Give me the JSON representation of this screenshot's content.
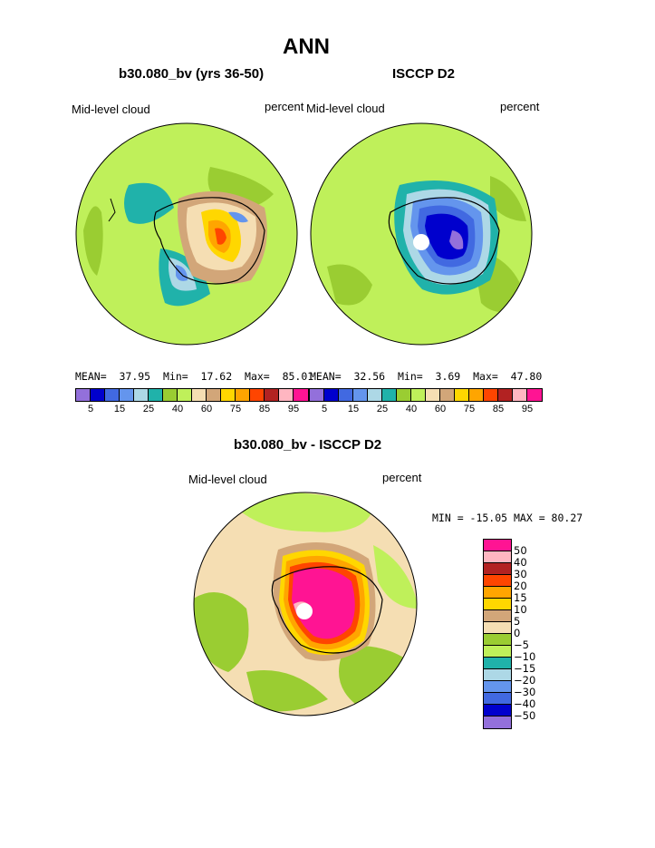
{
  "title": "ANN",
  "panel_left": {
    "subtitle": "b30.080_bv (yrs 36-50)",
    "variable": "Mid-level cloud",
    "units": "percent",
    "stats": {
      "mean_label": "MEAN=",
      "mean": "37.95",
      "min_label": "Min=",
      "min": "17.62",
      "max_label": "Max=",
      "max": "85.01"
    }
  },
  "panel_right": {
    "subtitle": "ISCCP D2",
    "variable": "Mid-level cloud",
    "units": "percent",
    "stats": {
      "mean_label": "MEAN=",
      "mean": "32.56",
      "min_label": "Min=",
      "min": "3.69",
      "max_label": "Max=",
      "max": "47.80"
    }
  },
  "colorbar_top": {
    "colors": [
      "#9370db",
      "#0000cd",
      "#4169e1",
      "#6495ed",
      "#add8e6",
      "#20b2aa",
      "#9acd32",
      "#bff05a",
      "#f5deb3",
      "#d2a679",
      "#ffd700",
      "#ffa500",
      "#ff4500",
      "#b22222",
      "#ffb6c1",
      "#ff1493"
    ],
    "ticks": [
      "5",
      "15",
      "25",
      "40",
      "60",
      "75",
      "85",
      "95"
    ]
  },
  "panel_diff": {
    "subtitle": "b30.080_bv - ISCCP D2",
    "variable": "Mid-level cloud",
    "units": "percent",
    "minmax": "MIN = -15.05 MAX =  80.27"
  },
  "colorbar_diff": {
    "colors": [
      "#ff1493",
      "#ffb6c1",
      "#b22222",
      "#ff4500",
      "#ffa500",
      "#ffd700",
      "#d2a679",
      "#f5deb3",
      "#9acd32",
      "#bff05a",
      "#20b2aa",
      "#add8e6",
      "#6495ed",
      "#4169e1",
      "#0000cd",
      "#9370db"
    ],
    "labels": [
      "50",
      "40",
      "30",
      "20",
      "15",
      "10",
      "5",
      "0",
      "−5",
      "−10",
      "−15",
      "−20",
      "−30",
      "−40",
      "−50"
    ]
  },
  "map_colors": {
    "ocean_base": "#bff05a",
    "darker_green": "#9acd32",
    "teal": "#20b2aa",
    "light_blue": "#add8e6",
    "tan": "#d2a679",
    "wheat": "#f5deb3",
    "gold": "#ffd700",
    "orange": "#ffa500",
    "red_orange": "#ff4500",
    "dark_red": "#b22222",
    "pink": "#ffb6c1",
    "magenta": "#ff1493",
    "blue1": "#6495ed",
    "blue2": "#4169e1",
    "blue3": "#0000cd",
    "purple": "#9370db"
  }
}
